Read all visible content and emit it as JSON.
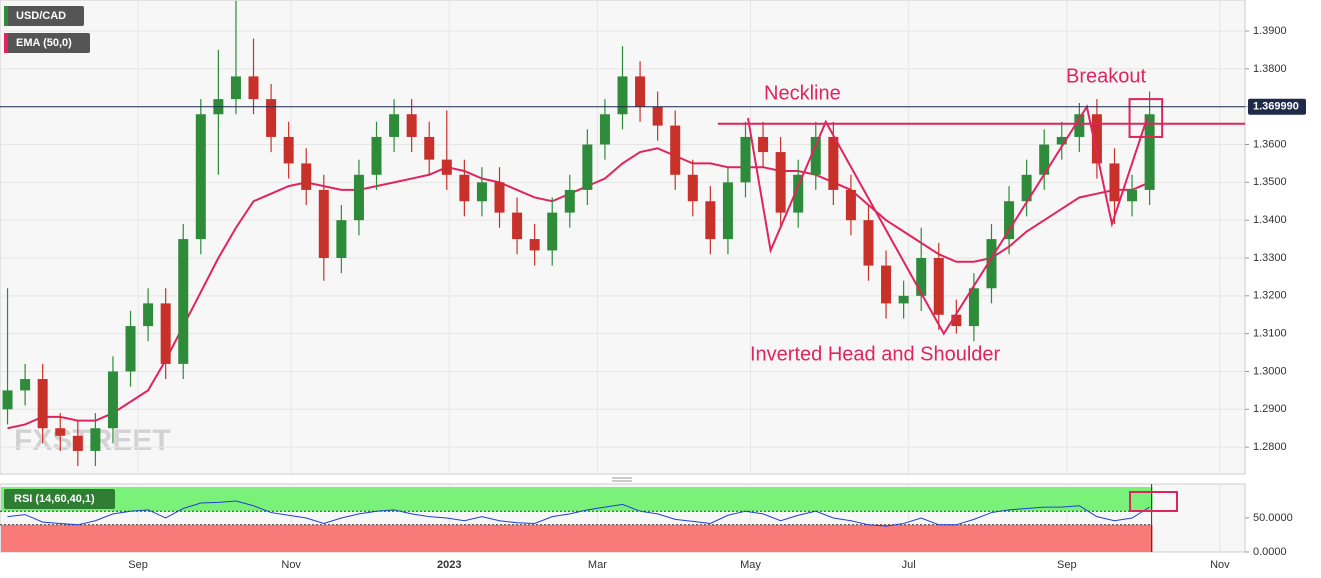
{
  "chart_data": {
    "type": "candlestick",
    "symbol": "USD/CAD",
    "indicator": "EMA (50,0)",
    "watermark": "FXSTREET",
    "x": [
      3,
      10,
      17,
      24,
      31,
      38,
      45,
      52,
      59,
      66,
      73,
      80,
      87,
      94,
      101,
      108,
      115,
      122,
      129,
      136,
      143,
      150,
      157,
      164,
      171,
      178,
      185,
      192,
      199,
      206,
      213,
      220,
      227,
      234,
      241,
      248,
      255,
      262,
      269,
      276,
      283,
      290,
      297,
      304,
      311,
      318,
      325,
      332,
      339,
      346,
      353,
      360,
      367,
      374,
      381,
      388,
      395,
      402,
      409,
      416,
      423,
      430,
      437,
      444,
      451,
      458
    ],
    "open": [
      1.29,
      1.295,
      1.298,
      1.285,
      1.283,
      1.279,
      1.285,
      1.3,
      1.312,
      1.318,
      1.302,
      1.335,
      1.368,
      1.372,
      1.378,
      1.372,
      1.362,
      1.355,
      1.348,
      1.33,
      1.34,
      1.352,
      1.362,
      1.368,
      1.362,
      1.356,
      1.352,
      1.345,
      1.35,
      1.342,
      1.335,
      1.332,
      1.342,
      1.348,
      1.36,
      1.368,
      1.378,
      1.37,
      1.365,
      1.352,
      1.345,
      1.335,
      1.35,
      1.362,
      1.358,
      1.342,
      1.352,
      1.362,
      1.348,
      1.34,
      1.328,
      1.318,
      1.32,
      1.33,
      1.315,
      1.312,
      1.322,
      1.335,
      1.345,
      1.352,
      1.36,
      1.362,
      1.368,
      1.355,
      1.345,
      1.348
    ],
    "high": [
      1.322,
      1.302,
      1.302,
      1.289,
      1.287,
      1.289,
      1.304,
      1.316,
      1.322,
      1.322,
      1.339,
      1.372,
      1.385,
      1.398,
      1.388,
      1.376,
      1.366,
      1.359,
      1.352,
      1.344,
      1.356,
      1.366,
      1.372,
      1.372,
      1.366,
      1.369,
      1.356,
      1.354,
      1.354,
      1.346,
      1.339,
      1.346,
      1.352,
      1.364,
      1.372,
      1.386,
      1.382,
      1.374,
      1.369,
      1.356,
      1.349,
      1.354,
      1.366,
      1.366,
      1.362,
      1.356,
      1.366,
      1.366,
      1.352,
      1.344,
      1.332,
      1.324,
      1.338,
      1.334,
      1.319,
      1.326,
      1.339,
      1.349,
      1.356,
      1.364,
      1.366,
      1.371,
      1.372,
      1.359,
      1.352,
      1.374
    ],
    "low": [
      1.286,
      1.291,
      1.281,
      1.279,
      1.275,
      1.275,
      1.281,
      1.296,
      1.308,
      1.298,
      1.298,
      1.331,
      1.352,
      1.368,
      1.368,
      1.358,
      1.351,
      1.344,
      1.324,
      1.326,
      1.336,
      1.348,
      1.358,
      1.358,
      1.352,
      1.348,
      1.341,
      1.341,
      1.338,
      1.331,
      1.328,
      1.328,
      1.338,
      1.344,
      1.356,
      1.364,
      1.366,
      1.361,
      1.348,
      1.341,
      1.331,
      1.331,
      1.346,
      1.354,
      1.338,
      1.338,
      1.348,
      1.344,
      1.336,
      1.324,
      1.314,
      1.314,
      1.316,
      1.311,
      1.31,
      1.308,
      1.318,
      1.331,
      1.341,
      1.348,
      1.356,
      1.358,
      1.351,
      1.339,
      1.341,
      1.344
    ],
    "close": [
      1.295,
      1.298,
      1.285,
      1.283,
      1.279,
      1.285,
      1.3,
      1.312,
      1.318,
      1.302,
      1.335,
      1.368,
      1.372,
      1.378,
      1.372,
      1.362,
      1.355,
      1.348,
      1.33,
      1.34,
      1.352,
      1.362,
      1.368,
      1.362,
      1.356,
      1.352,
      1.345,
      1.35,
      1.342,
      1.335,
      1.332,
      1.342,
      1.348,
      1.36,
      1.368,
      1.378,
      1.37,
      1.365,
      1.352,
      1.345,
      1.335,
      1.35,
      1.362,
      1.358,
      1.342,
      1.352,
      1.362,
      1.348,
      1.34,
      1.328,
      1.318,
      1.32,
      1.33,
      1.315,
      1.312,
      1.322,
      1.335,
      1.345,
      1.352,
      1.36,
      1.362,
      1.368,
      1.355,
      1.345,
      1.348,
      1.368
    ],
    "up_color": "#2e8b3a",
    "down_color": "#c8302a",
    "ema": {
      "color": "#e0245e",
      "values": [
        1.285,
        1.286,
        1.288,
        1.288,
        1.287,
        1.287,
        1.289,
        1.292,
        1.295,
        1.303,
        1.312,
        1.321,
        1.33,
        1.338,
        1.345,
        1.347,
        1.349,
        1.35,
        1.349,
        1.348,
        1.348,
        1.349,
        1.35,
        1.351,
        1.352,
        1.354,
        1.353,
        1.351,
        1.35,
        1.348,
        1.346,
        1.345,
        1.347,
        1.349,
        1.351,
        1.355,
        1.358,
        1.359,
        1.357,
        1.355,
        1.355,
        1.354,
        1.354,
        1.354,
        1.353,
        1.353,
        1.352,
        1.35,
        1.348,
        1.344,
        1.34,
        1.337,
        1.334,
        1.331,
        1.329,
        1.329,
        1.33,
        1.333,
        1.337,
        1.34,
        1.343,
        1.346,
        1.347,
        1.348,
        1.348,
        1.35
      ]
    },
    "last_price": {
      "value": 1.36999,
      "label": "1.369990",
      "color": "#1e2a4a"
    },
    "xlim": [
      0,
      496
    ],
    "xticks": [
      {
        "value": 55,
        "label": "Sep"
      },
      {
        "value": 116,
        "label": "Nov"
      },
      {
        "value": 179,
        "label": "2023"
      },
      {
        "value": 238,
        "label": "Mar"
      },
      {
        "value": 299,
        "label": "May"
      },
      {
        "value": 362,
        "label": "Jul"
      },
      {
        "value": 425,
        "label": "Sep"
      },
      {
        "value": 486,
        "label": "Nov"
      }
    ],
    "ylim": [
      1.2729,
      1.3982
    ],
    "yticks": [
      {
        "value": 1.28,
        "label": "1.2800"
      },
      {
        "value": 1.29,
        "label": "1.2900"
      },
      {
        "value": 1.3,
        "label": "1.3000"
      },
      {
        "value": 1.31,
        "label": "1.3100"
      },
      {
        "value": 1.32,
        "label": "1.3200"
      },
      {
        "value": 1.33,
        "label": "1.3300"
      },
      {
        "value": 1.34,
        "label": "1.3400"
      },
      {
        "value": 1.35,
        "label": "1.3500"
      },
      {
        "value": 1.36,
        "label": "1.3600"
      },
      {
        "value": 1.37,
        "label": "1.3700"
      },
      {
        "value": 1.38,
        "label": "1.3800"
      },
      {
        "value": 1.39,
        "label": "1.3900"
      }
    ],
    "grid": true,
    "annotations": {
      "color": "#e0245e",
      "neckline": {
        "text": "Neckline",
        "price": 1.3655,
        "x_start": 286
      },
      "breakout": {
        "text": "Breakout",
        "x": [
          450,
          463
        ],
        "y": [
          1.362,
          1.372
        ]
      },
      "pattern": {
        "text": "Inverted Head and Shoulder",
        "x": [
          298,
          307,
          329,
          376,
          433,
          443,
          457
        ],
        "y": [
          1.367,
          1.332,
          1.366,
          1.31,
          1.37,
          1.339,
          1.367
        ]
      }
    },
    "rsi": {
      "label": "RSI (14,60,40,1)",
      "color": "#2040d0",
      "ylim": [
        0,
        100
      ],
      "upper": 60,
      "lower": 40,
      "yticks": [
        {
          "value": 50,
          "label": "50.0000"
        },
        {
          "value": 0,
          "label": "0.0000"
        }
      ],
      "values": [
        52,
        55,
        44,
        42,
        40,
        46,
        56,
        60,
        62,
        50,
        64,
        72,
        73,
        75,
        68,
        58,
        54,
        50,
        42,
        50,
        56,
        60,
        62,
        56,
        52,
        50,
        46,
        52,
        46,
        43,
        42,
        52,
        56,
        62,
        66,
        70,
        60,
        56,
        48,
        45,
        42,
        54,
        60,
        56,
        46,
        54,
        60,
        50,
        46,
        40,
        38,
        42,
        50,
        40,
        40,
        48,
        58,
        62,
        64,
        66,
        66,
        68,
        52,
        46,
        50,
        66
      ]
    }
  }
}
